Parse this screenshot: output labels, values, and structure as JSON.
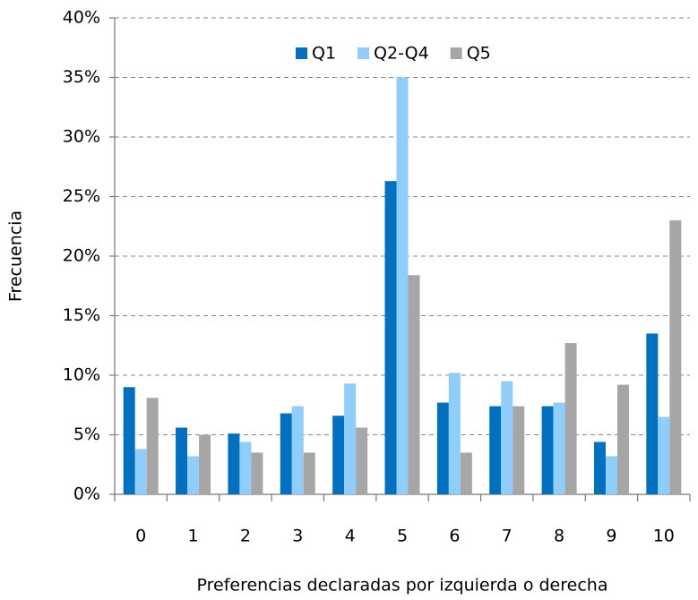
{
  "chart_data": {
    "type": "bar",
    "x_label": "Preferencias declaradas por izquierda o derecha",
    "y_label": "Frecuencia",
    "categories": [
      "0",
      "1",
      "2",
      "3",
      "4",
      "5",
      "6",
      "7",
      "8",
      "9",
      "10"
    ],
    "series": [
      {
        "name": "Q1",
        "color": "#0070c0",
        "values": [
          9.0,
          5.6,
          5.1,
          6.8,
          6.6,
          26.3,
          7.7,
          7.4,
          7.4,
          4.4,
          13.5
        ]
      },
      {
        "name": "Q2-Q4",
        "color": "#8fcdfb",
        "values": [
          3.8,
          3.2,
          4.4,
          7.4,
          9.3,
          35.0,
          10.2,
          9.5,
          7.7,
          3.2,
          6.5
        ]
      },
      {
        "name": "Q5",
        "color": "#a6a6a6",
        "values": [
          8.1,
          5.0,
          3.5,
          3.5,
          5.6,
          18.4,
          3.5,
          7.4,
          12.7,
          9.2,
          23.0
        ]
      }
    ],
    "ylim": [
      0,
      40
    ],
    "yticks": [
      {
        "value": 0,
        "label": "0%"
      },
      {
        "value": 5,
        "label": "5%"
      },
      {
        "value": 10,
        "label": "10%"
      },
      {
        "value": 15,
        "label": "15%"
      },
      {
        "value": 20,
        "label": "20%"
      },
      {
        "value": 25,
        "label": "25%"
      },
      {
        "value": 30,
        "label": "30%"
      },
      {
        "value": 35,
        "label": "35%"
      },
      {
        "value": 40,
        "label": "40%"
      }
    ],
    "grid": true,
    "legend": "top"
  }
}
